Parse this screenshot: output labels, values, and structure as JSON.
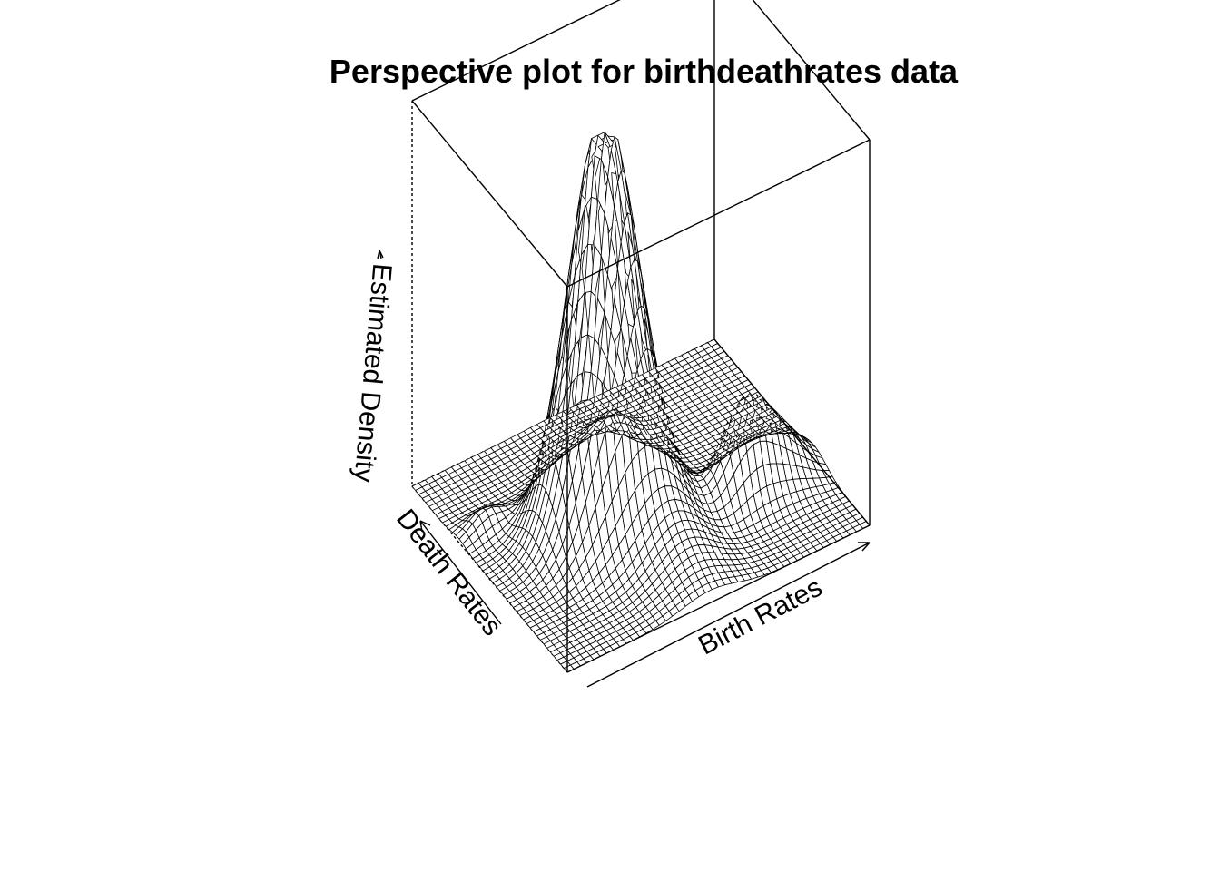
{
  "chart_data": {
    "type": "surface",
    "title": "Perspective plot for birthdeathrates data",
    "xlabel": "Birth Rates",
    "ylabel": "Death Rates",
    "zlabel": "Estimated Density",
    "view": {
      "theta_deg": -35,
      "phi_deg": 30
    },
    "line_color": "#000000",
    "background": "#ffffff",
    "surface_peaks": [
      {
        "birth": 0.36,
        "death": 0.49,
        "height": 1.0,
        "spread_birth": 0.1,
        "spread_death": 0.1
      },
      {
        "birth": 0.47,
        "death": 0.4,
        "height": 0.17,
        "spread_birth": 0.09,
        "spread_death": 0.22
      },
      {
        "birth": 0.75,
        "death": 0.34,
        "height": 0.21,
        "spread_birth": 0.07,
        "spread_death": 0.06
      },
      {
        "birth": 0.87,
        "death": 0.36,
        "height": 0.13,
        "spread_birth": 0.08,
        "spread_death": 0.08
      },
      {
        "birth": 0.56,
        "death": 0.8,
        "height": 0.06,
        "spread_birth": 0.05,
        "spread_death": 0.04
      },
      {
        "birth": 0.09,
        "death": 0.7,
        "height": 0.05,
        "spread_birth": 0.05,
        "spread_death": 0.04
      }
    ]
  }
}
